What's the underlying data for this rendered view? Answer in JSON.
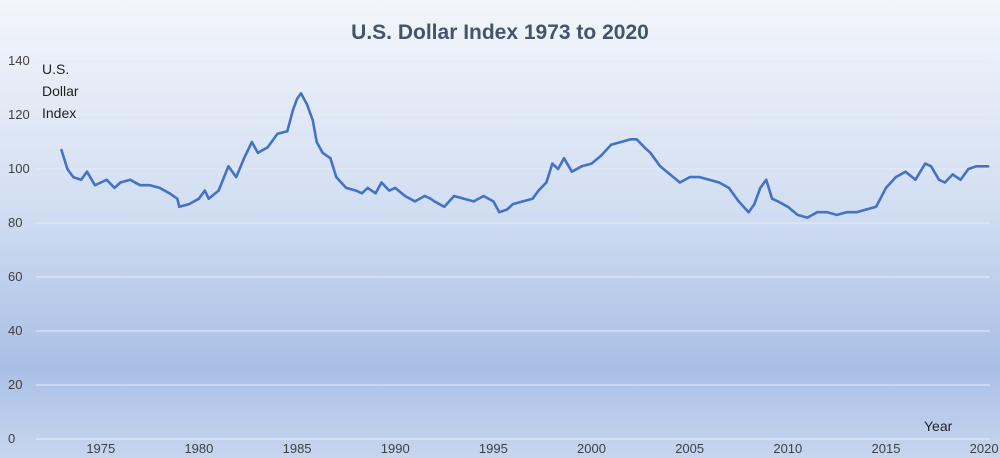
{
  "chart_data": {
    "type": "line",
    "title": "U.S. Dollar Index 1973 to 2020",
    "ylabel_lines": [
      "U.S.",
      "Dollar",
      "Index"
    ],
    "xlabel": "Year",
    "ylim": [
      0,
      140
    ],
    "xlim": [
      1971.7,
      2020.3
    ],
    "y_ticks": [
      0,
      20,
      40,
      60,
      80,
      100,
      120,
      140
    ],
    "x_ticks": [
      1975,
      1980,
      1985,
      1990,
      1995,
      2000,
      2005,
      2010,
      2015,
      2020
    ],
    "grid": true,
    "line_color": "#4472c4",
    "series": [
      {
        "name": "",
        "x": [
          1973.0,
          1973.3,
          1973.6,
          1974.0,
          1974.3,
          1974.7,
          1975.0,
          1975.3,
          1975.7,
          1976.0,
          1976.5,
          1977.0,
          1977.5,
          1978.0,
          1978.5,
          1978.9,
          1979.0,
          1979.5,
          1980.0,
          1980.3,
          1980.5,
          1981.0,
          1981.5,
          1981.9,
          1982.3,
          1982.7,
          1983.0,
          1983.5,
          1984.0,
          1984.5,
          1984.8,
          1985.0,
          1985.2,
          1985.5,
          1985.8,
          1986.0,
          1986.3,
          1986.7,
          1987.0,
          1987.5,
          1988.0,
          1988.3,
          1988.6,
          1989.0,
          1989.3,
          1989.7,
          1990.0,
          1990.5,
          1991.0,
          1991.5,
          1991.8,
          1992.0,
          1992.5,
          1993.0,
          1993.5,
          1994.0,
          1994.5,
          1995.0,
          1995.3,
          1995.7,
          1996.0,
          1996.5,
          1997.0,
          1997.3,
          1997.7,
          1998.0,
          1998.3,
          1998.6,
          1999.0,
          1999.5,
          2000.0,
          2000.5,
          2001.0,
          2001.5,
          2002.0,
          2002.3,
          2002.7,
          2003.0,
          2003.5,
          2004.0,
          2004.5,
          2005.0,
          2005.5,
          2006.0,
          2006.5,
          2007.0,
          2007.5,
          2008.0,
          2008.3,
          2008.6,
          2008.9,
          2009.2,
          2009.5,
          2010.0,
          2010.5,
          2011.0,
          2011.5,
          2012.0,
          2012.5,
          2013.0,
          2013.5,
          2014.0,
          2014.5,
          2015.0,
          2015.5,
          2016.0,
          2016.5,
          2017.0,
          2017.3,
          2017.7,
          2018.0,
          2018.4,
          2018.8,
          2019.2,
          2019.6,
          2019.9,
          2020.2
        ],
        "values": [
          107,
          100,
          97,
          96,
          99,
          94,
          95,
          96,
          93,
          95,
          96,
          94,
          94,
          93,
          91,
          89,
          86,
          87,
          89,
          92,
          89,
          92,
          101,
          97,
          104,
          110,
          106,
          108,
          113,
          114,
          122,
          126,
          128,
          124,
          118,
          110,
          106,
          104,
          97,
          93,
          92,
          91,
          93,
          91,
          95,
          92,
          93,
          90,
          88,
          90,
          89,
          88,
          86,
          90,
          89,
          88,
          90,
          88,
          84,
          85,
          87,
          88,
          89,
          92,
          95,
          102,
          100,
          104,
          99,
          101,
          102,
          105,
          109,
          110,
          111,
          111,
          108,
          106,
          101,
          98,
          95,
          97,
          97,
          96,
          95,
          93,
          88,
          84,
          87,
          93,
          96,
          89,
          88,
          86,
          83,
          82,
          84,
          84,
          83,
          84,
          84,
          85,
          86,
          93,
          97,
          99,
          96,
          102,
          101,
          96,
          95,
          98,
          96,
          100,
          101,
          101,
          101
        ]
      }
    ]
  }
}
